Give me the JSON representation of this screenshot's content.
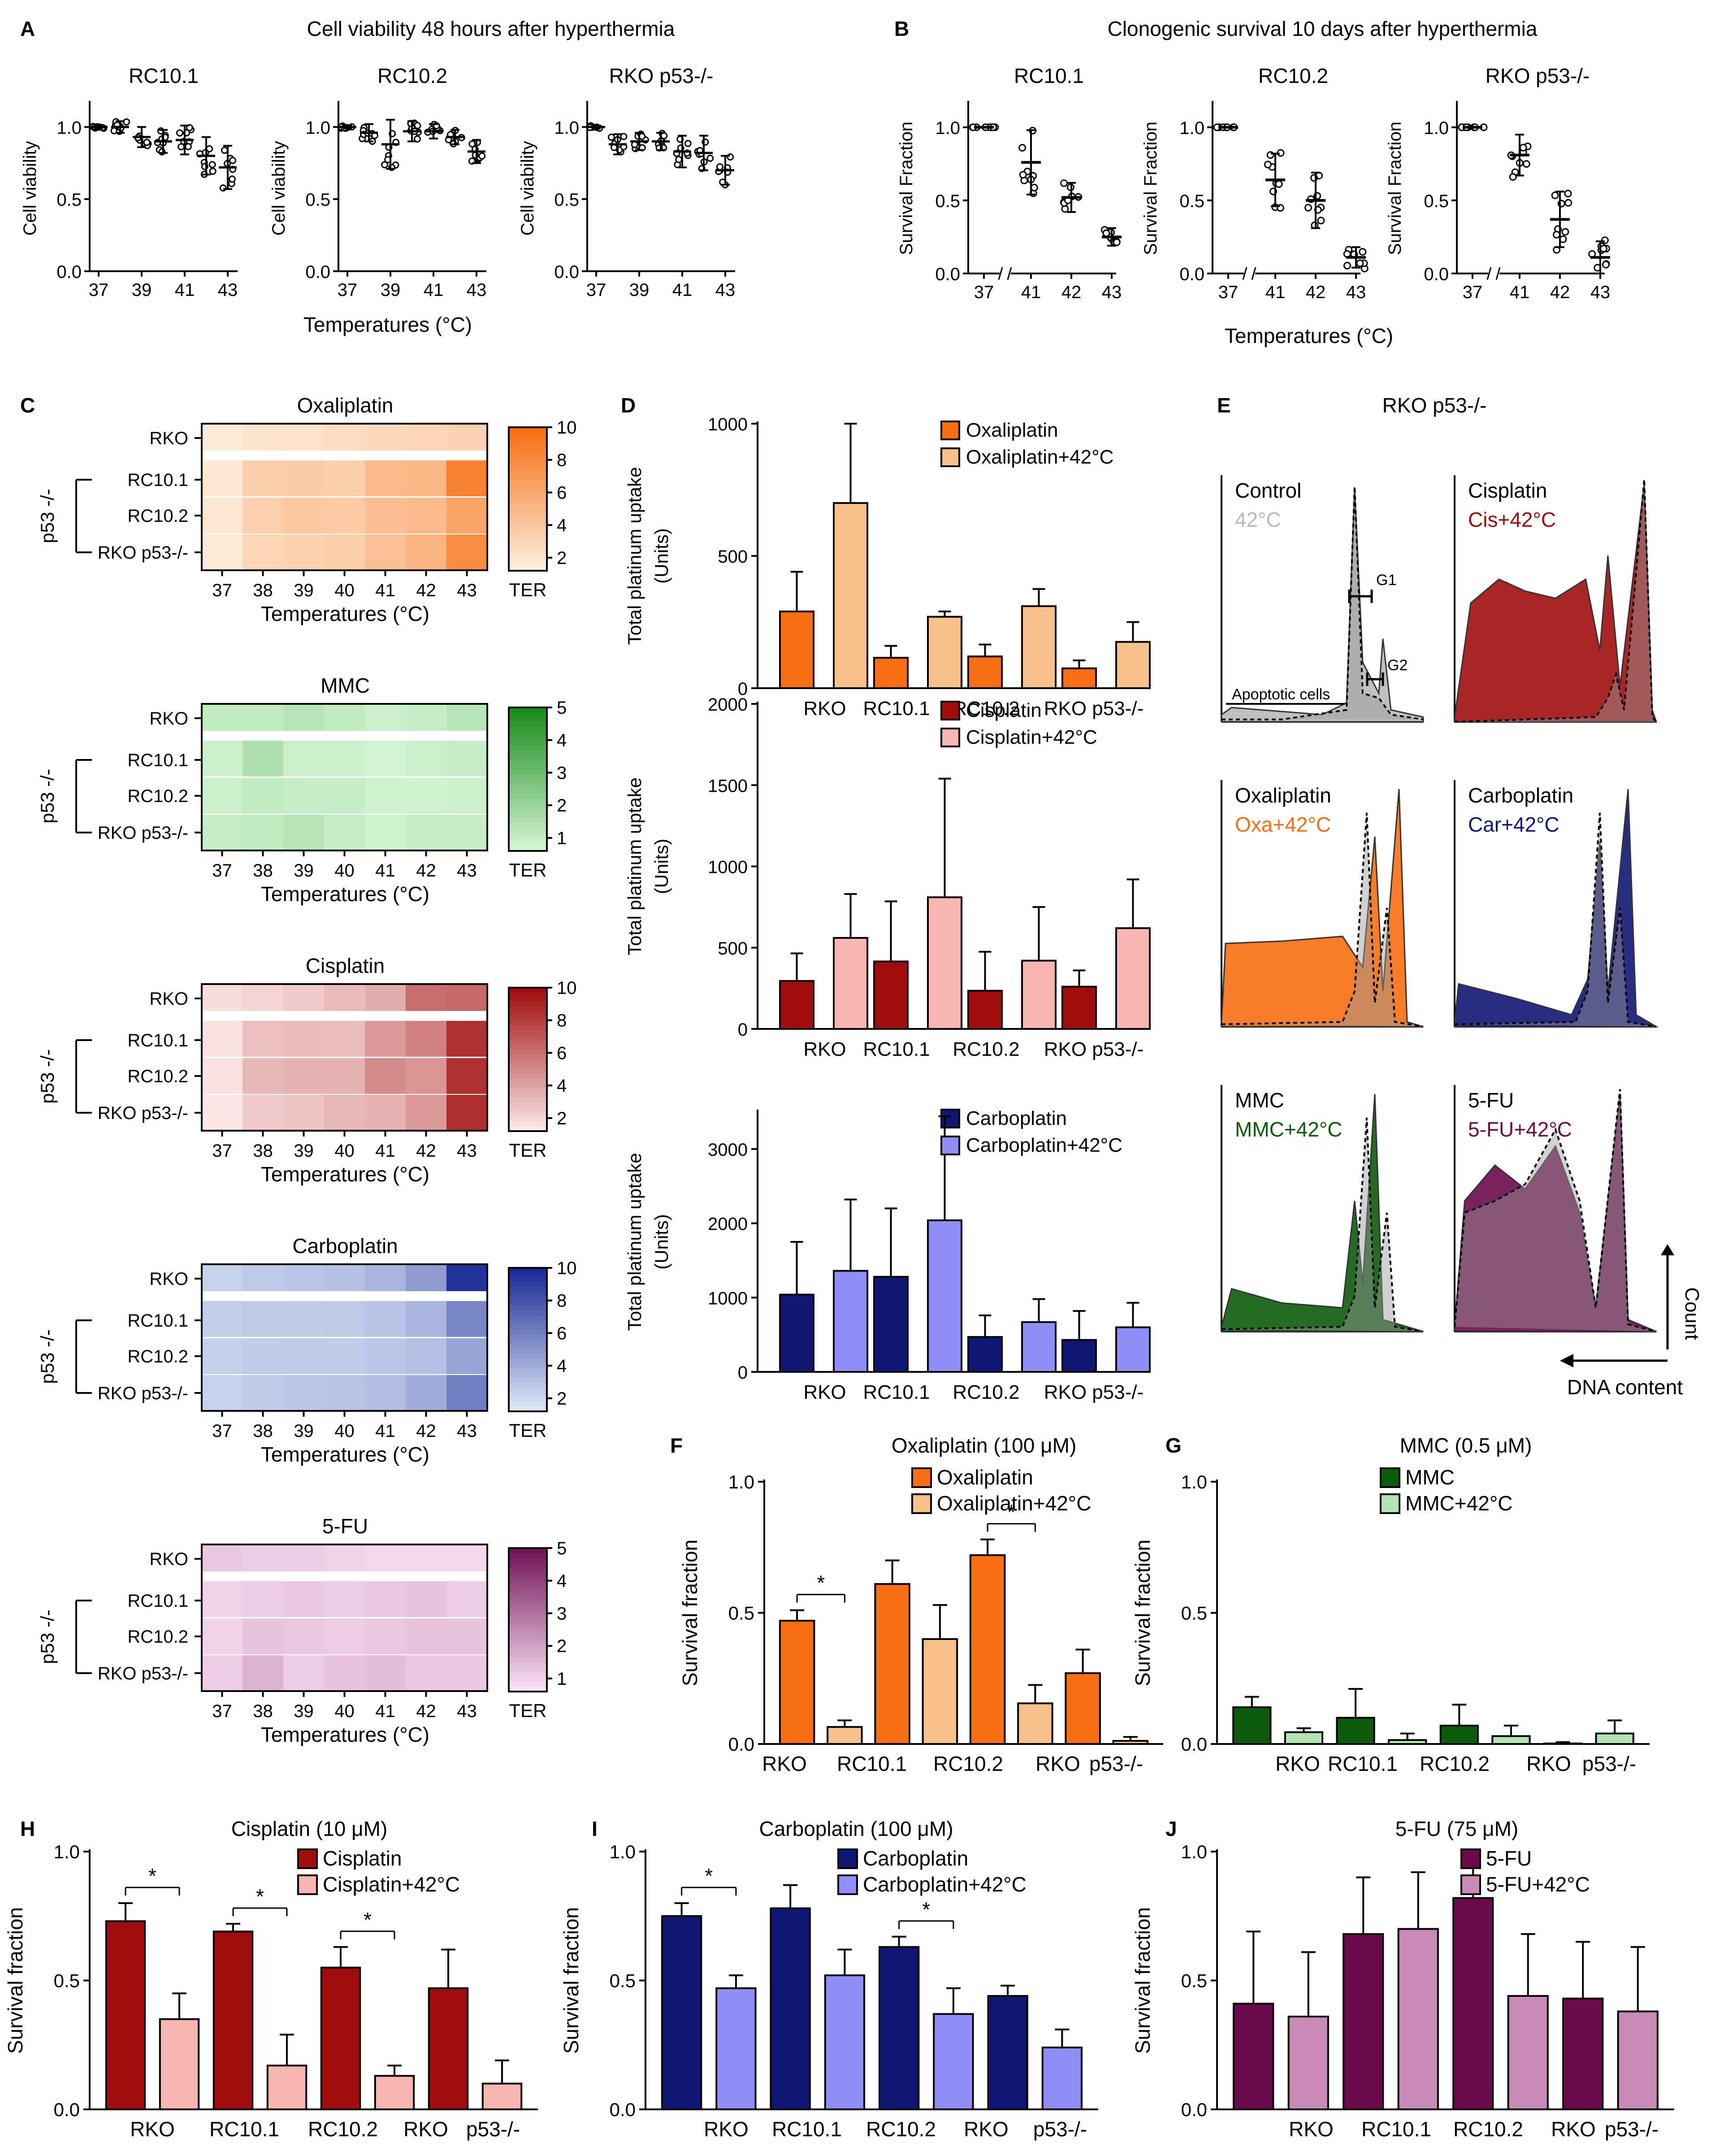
{
  "panels": [
    {
      "letter": "A",
      "title": "Cell viability 48 hours after hyperthermia"
    },
    {
      "letter": "B",
      "title": "Clonogenic survival 10 days after hyperthermia"
    },
    {
      "letter": "C"
    },
    {
      "letter": "D"
    },
    {
      "letter": "E",
      "title": "RKO p53-/-"
    },
    {
      "letter": "F"
    },
    {
      "letter": "G"
    },
    {
      "letter": "H"
    },
    {
      "letter": "I"
    },
    {
      "letter": "J"
    }
  ],
  "shared": {
    "temp_label": "Temperatures (°C)",
    "ter_label": "TER",
    "p53_label": "p53 -/-",
    "cell_lines": [
      "RKO",
      "RC10.1",
      "RC10.2",
      "RKO p53-/-"
    ],
    "count_label": "Count",
    "dna_label": "DNA content"
  },
  "colors": {
    "oxa": "#f86e12",
    "oxa42": "#f8c08a",
    "cis": "#a10d0d",
    "cis42": "#f7b6b2",
    "car": "#0f1673",
    "car42": "#8f8ef6",
    "mmc": "#0c5c0c",
    "mmc42": "#b4e3b4",
    "fu": "#6b0a4b",
    "fu42": "#c98ab8"
  },
  "chart_data": [
    {
      "id": "A",
      "type": "scatter",
      "subtitles": [
        "RC10.1",
        "RC10.2",
        "RKO p53-/-"
      ],
      "ylabel": "Cell viability",
      "xlabel": "Temperatures (°C)",
      "x": [
        37,
        38,
        39,
        40,
        41,
        42,
        43
      ],
      "xticks": [
        "37",
        "39",
        "41",
        "43"
      ],
      "yticks": [
        "0.0",
        "0.5",
        "1.0"
      ],
      "ylim": [
        0,
        1.15
      ],
      "series": [
        {
          "name": "RC10.1",
          "means": [
            1.0,
            1.0,
            0.93,
            0.9,
            0.91,
            0.8,
            0.72
          ],
          "sd": [
            0.01,
            0.04,
            0.07,
            0.08,
            0.1,
            0.13,
            0.15
          ]
        },
        {
          "name": "RC10.2",
          "means": [
            1.0,
            0.96,
            0.88,
            0.97,
            0.97,
            0.93,
            0.83
          ],
          "sd": [
            0.01,
            0.06,
            0.17,
            0.07,
            0.05,
            0.05,
            0.08
          ]
        },
        {
          "name": "RKO p53-/-",
          "means": [
            1.0,
            0.88,
            0.9,
            0.9,
            0.83,
            0.82,
            0.7
          ],
          "sd": [
            0.01,
            0.07,
            0.06,
            0.06,
            0.11,
            0.12,
            0.1
          ]
        }
      ]
    },
    {
      "id": "B",
      "type": "scatter",
      "subtitles": [
        "RC10.1",
        "RC10.2",
        "RKO p53-/-"
      ],
      "ylabel": "Survival Fraction",
      "xlabel": "Temperatures (°C)",
      "x": [
        "37",
        "41",
        "42",
        "43"
      ],
      "yticks": [
        "0.0",
        "0.5",
        "1.0"
      ],
      "ylim": [
        0,
        1.15
      ],
      "series": [
        {
          "name": "RC10.1",
          "means": [
            1.0,
            0.76,
            0.52,
            0.25
          ],
          "sd": [
            0.01,
            0.22,
            0.1,
            0.06
          ]
        },
        {
          "name": "RC10.2",
          "means": [
            1.0,
            0.64,
            0.5,
            0.11
          ],
          "sd": [
            0.01,
            0.18,
            0.19,
            0.07
          ]
        },
        {
          "name": "RKO p53-/-",
          "means": [
            1.0,
            0.81,
            0.37,
            0.11
          ],
          "sd": [
            0.01,
            0.14,
            0.19,
            0.11
          ]
        }
      ]
    },
    {
      "id": "C",
      "type": "heatmap",
      "xlabel": "Temperatures (°C)",
      "x": [
        37,
        38,
        39,
        40,
        41,
        42,
        43
      ],
      "rows": [
        "RKO",
        "RC10.1",
        "RC10.2",
        "RKO p53-/-"
      ],
      "maps": [
        {
          "title": "Oxaliplatin",
          "cmax": 10,
          "ticks": [
            2,
            4,
            6,
            8,
            10
          ],
          "low": "#fdeedd",
          "high": "#f86e12",
          "values": [
            [
              1.2,
              1.6,
              1.8,
              2.2,
              2.5,
              2.7,
              2.9
            ],
            [
              1.4,
              3.2,
              3.4,
              3.2,
              4.6,
              4.8,
              8.6
            ],
            [
              1.5,
              3.1,
              3.7,
              3.5,
              4.3,
              4.6,
              6.2
            ],
            [
              1.3,
              2.7,
              3,
              3.2,
              4.2,
              5,
              7.8
            ]
          ]
        },
        {
          "title": "MMC",
          "cmax": 5,
          "ticks": [
            1,
            2,
            3,
            4,
            5
          ],
          "low": "#d4f5d4",
          "high": "#1a8c1a",
          "values": [
            [
              1.4,
              1.4,
              1.6,
              1.4,
              1.2,
              1.3,
              1.6
            ],
            [
              1.2,
              1.8,
              1.2,
              1.2,
              1,
              1.2,
              1.3
            ],
            [
              1.2,
              1.4,
              1.3,
              1.3,
              1.1,
              1.1,
              1.2
            ],
            [
              1.3,
              1.4,
              1.6,
              1.3,
              1.1,
              1.3,
              1.3
            ]
          ]
        },
        {
          "title": "Cisplatin",
          "cmax": 10,
          "ticks": [
            2,
            4,
            6,
            8,
            10
          ],
          "low": "#fce7e7",
          "high": "#a10d0d",
          "values": [
            [
              1.4,
              1.8,
              2.2,
              2.8,
              3.4,
              6,
              6.2
            ],
            [
              1.2,
              2.6,
              2.8,
              2.7,
              4.2,
              5.2,
              8.5
            ],
            [
              1.2,
              3,
              3.2,
              3.2,
              4.8,
              4.4,
              8.5
            ],
            [
              1.1,
              2.2,
              2.4,
              3,
              3.2,
              4.2,
              8.6
            ]
          ]
        },
        {
          "title": "Carboplatin",
          "cmax": 10,
          "ticks": [
            2,
            4,
            6,
            8,
            10
          ],
          "low": "#dde7f8",
          "high": "#1a2a96",
          "values": [
            [
              2,
              2.4,
              2.6,
              2.8,
              3.4,
              4.6,
              9.6
            ],
            [
              2.2,
              2.4,
              2.3,
              2.4,
              2.7,
              3.4,
              5.6
            ],
            [
              2.1,
              2.3,
              2.4,
              2.3,
              2.6,
              2.9,
              4.2
            ],
            [
              2,
              2.3,
              2.6,
              2.7,
              3,
              3.8,
              6
            ]
          ]
        },
        {
          "title": "5-FU",
          "cmax": 5,
          "ticks": [
            1,
            2,
            3,
            4,
            5
          ],
          "low": "#fbe2f5",
          "high": "#731458",
          "values": [
            [
              1.5,
              1.4,
              1.4,
              1.3,
              1.2,
              1.2,
              1.2
            ],
            [
              1.3,
              1.4,
              1.5,
              1.4,
              1.5,
              1.6,
              1.4
            ],
            [
              1.3,
              1.6,
              1.5,
              1.4,
              1.5,
              1.6,
              1.6
            ],
            [
              1.4,
              1.9,
              1.4,
              1.6,
              1.7,
              1.5,
              1.5
            ]
          ]
        }
      ]
    },
    {
      "id": "D",
      "type": "bar",
      "ylabel": "Total platinum uptake",
      "yunit": "(Units)",
      "categories": [
        "RKO",
        "RC10.1",
        "RC10.2",
        "RKO p53-/-"
      ],
      "charts": [
        {
          "ylim": [
            0,
            1000
          ],
          "yticks": [
            "0",
            "500",
            "1000"
          ],
          "series": [
            {
              "name": "Oxaliplatin",
              "values": [
                290,
                115,
                120,
                75
              ],
              "err": [
                150,
                45,
                45,
                30
              ]
            },
            {
              "name": "Oxaliplatin+42°C",
              "values": [
                700,
                270,
                310,
                175
              ],
              "err": [
                300,
                20,
                65,
                75
              ]
            }
          ]
        },
        {
          "ylim": [
            0,
            2000
          ],
          "yticks": [
            "0",
            "500",
            "1000",
            "1500",
            "2000"
          ],
          "series": [
            {
              "name": "Cisplatin",
              "values": [
                295,
                415,
                235,
                260
              ],
              "err": [
                170,
                370,
                240,
                100
              ]
            },
            {
              "name": "Cisplatin+42°C",
              "values": [
                560,
                810,
                420,
                620
              ],
              "err": [
                270,
                730,
                330,
                300
              ]
            }
          ]
        },
        {
          "ylim": [
            0,
            3500
          ],
          "yticks": [
            "0",
            "1000",
            "2000",
            "3000"
          ],
          "series": [
            {
              "name": "Carboplatin",
              "values": [
                1040,
                1280,
                470,
                430
              ],
              "err": [
                710,
                920,
                290,
                390
              ]
            },
            {
              "name": "Carboplatin+42°C",
              "values": [
                1360,
                2040,
                670,
                600
              ],
              "err": [
                960,
                1400,
                310,
                330
              ]
            }
          ]
        }
      ]
    },
    {
      "id": "E",
      "type": "area",
      "title": "RKO p53-/-",
      "panels": [
        {
          "name": "Control",
          "name42": "42°C",
          "annotations": [
            "G1",
            "G2",
            "Apoptotic cells"
          ]
        },
        {
          "name": "Cisplatin",
          "name42": "Cis+42°C"
        },
        {
          "name": "Oxaliplatin",
          "name42": "Oxa+42°C"
        },
        {
          "name": "Carboplatin",
          "name42": "Car+42°C"
        },
        {
          "name": "MMC",
          "name42": "MMC+42°C"
        },
        {
          "name": "5-FU",
          "name42": "5-FU+42°C"
        }
      ]
    },
    {
      "id": "F",
      "type": "bar",
      "title": "Oxaliplatin (100 μM)",
      "ylabel": "Survival fraction",
      "categories": [
        "RKO",
        "RC10.1",
        "RC10.2",
        "RKO p53-/-"
      ],
      "ylim": [
        0,
        1
      ],
      "yticks": [
        "0.0",
        "0.5",
        "1.0"
      ],
      "sig": [
        "*",
        "*"
      ],
      "series": [
        {
          "name": "Oxaliplatin",
          "values": [
            0.47,
            0.61,
            0.72,
            0.27
          ],
          "err": [
            0.04,
            0.09,
            0.06,
            0.09
          ]
        },
        {
          "name": "Oxaliplatin+42°C",
          "values": [
            0.065,
            0.4,
            0.155,
            0.012
          ],
          "err": [
            0.025,
            0.13,
            0.07,
            0.015
          ]
        }
      ]
    },
    {
      "id": "G",
      "type": "bar",
      "title": "MMC (0.5 μM)",
      "ylabel": "Survival fraction",
      "categories": [
        "RKO",
        "RC10.1",
        "RC10.2",
        "RKO p53-/-"
      ],
      "ylim": [
        0,
        1
      ],
      "yticks": [
        "0.0",
        "0.5",
        "1.0"
      ],
      "series": [
        {
          "name": "MMC",
          "values": [
            0.14,
            0.1,
            0.07,
            0.002
          ],
          "err": [
            0.04,
            0.11,
            0.08,
            0.005
          ]
        },
        {
          "name": "MMC+42°C",
          "values": [
            0.045,
            0.015,
            0.03,
            0.04
          ],
          "err": [
            0.015,
            0.025,
            0.04,
            0.05
          ]
        }
      ]
    },
    {
      "id": "H",
      "type": "bar",
      "title": "Cisplatin (10 μM)",
      "ylabel": "Survival fraction",
      "categories": [
        "RKO",
        "RC10.1",
        "RC10.2",
        "RKO p53-/-"
      ],
      "ylim": [
        0,
        1
      ],
      "yticks": [
        "0.0",
        "0.5",
        "1.0"
      ],
      "sig": [
        "*",
        "*",
        "*"
      ],
      "series": [
        {
          "name": "Cisplatin",
          "values": [
            0.73,
            0.69,
            0.55,
            0.47
          ],
          "err": [
            0.07,
            0.03,
            0.08,
            0.15
          ]
        },
        {
          "name": "Cisplatin+42°C",
          "values": [
            0.35,
            0.17,
            0.13,
            0.1
          ],
          "err": [
            0.1,
            0.12,
            0.04,
            0.09
          ]
        }
      ]
    },
    {
      "id": "I",
      "type": "bar",
      "title": "Carboplatin (100 μM)",
      "ylabel": "Survival fraction",
      "categories": [
        "RKO",
        "RC10.1",
        "RC10.2",
        "RKO p53-/-"
      ],
      "ylim": [
        0,
        1
      ],
      "yticks": [
        "0.0",
        "0.5",
        "1.0"
      ],
      "sig": [
        "*",
        "*"
      ],
      "series": [
        {
          "name": "Carboplatin",
          "values": [
            0.75,
            0.78,
            0.63,
            0.44
          ],
          "err": [
            0.05,
            0.09,
            0.04,
            0.04
          ]
        },
        {
          "name": "Carboplatin+42°C",
          "values": [
            0.47,
            0.52,
            0.37,
            0.24
          ],
          "err": [
            0.05,
            0.1,
            0.1,
            0.07
          ]
        }
      ]
    },
    {
      "id": "J",
      "type": "bar",
      "title": "5-FU (75 μM)",
      "ylabel": "Survival fraction",
      "categories": [
        "RKO",
        "RC10.1",
        "RC10.2",
        "RKO p53-/-"
      ],
      "ylim": [
        0,
        1
      ],
      "yticks": [
        "0.0",
        "0.5",
        "1.0"
      ],
      "series": [
        {
          "name": "5-FU",
          "values": [
            0.41,
            0.68,
            0.82,
            0.43
          ],
          "err": [
            0.28,
            0.22,
            0.18,
            0.22
          ]
        },
        {
          "name": "5-FU+42°C",
          "values": [
            0.36,
            0.7,
            0.44,
            0.38
          ],
          "err": [
            0.25,
            0.22,
            0.24,
            0.25
          ]
        }
      ]
    }
  ]
}
